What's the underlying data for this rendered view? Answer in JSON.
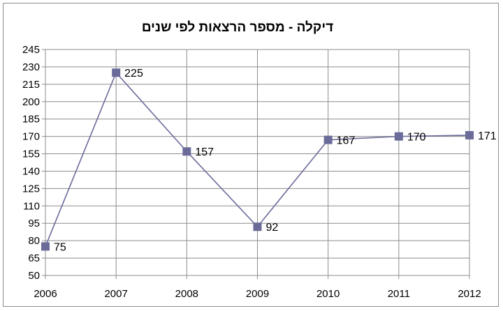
{
  "chart_data": {
    "type": "line",
    "title": "דיקלה - מספר הרצאות לפי שנים",
    "xlabel": "",
    "ylabel": "",
    "categories": [
      "2006",
      "2007",
      "2008",
      "2009",
      "2010",
      "2011",
      "2012"
    ],
    "series": [
      {
        "values": [
          75,
          225,
          157,
          92,
          167,
          170,
          171
        ],
        "color": "#6b6b9a"
      }
    ],
    "data_labels": [
      "75",
      "225",
      "157",
      "92",
      "167",
      "170",
      "171"
    ],
    "y_ticks": [
      "50",
      "65",
      "80",
      "95",
      "110",
      "125",
      "140",
      "155",
      "170",
      "185",
      "200",
      "215",
      "230",
      "245"
    ],
    "ylim": [
      50,
      245
    ],
    "grid": true,
    "legend": "none"
  }
}
